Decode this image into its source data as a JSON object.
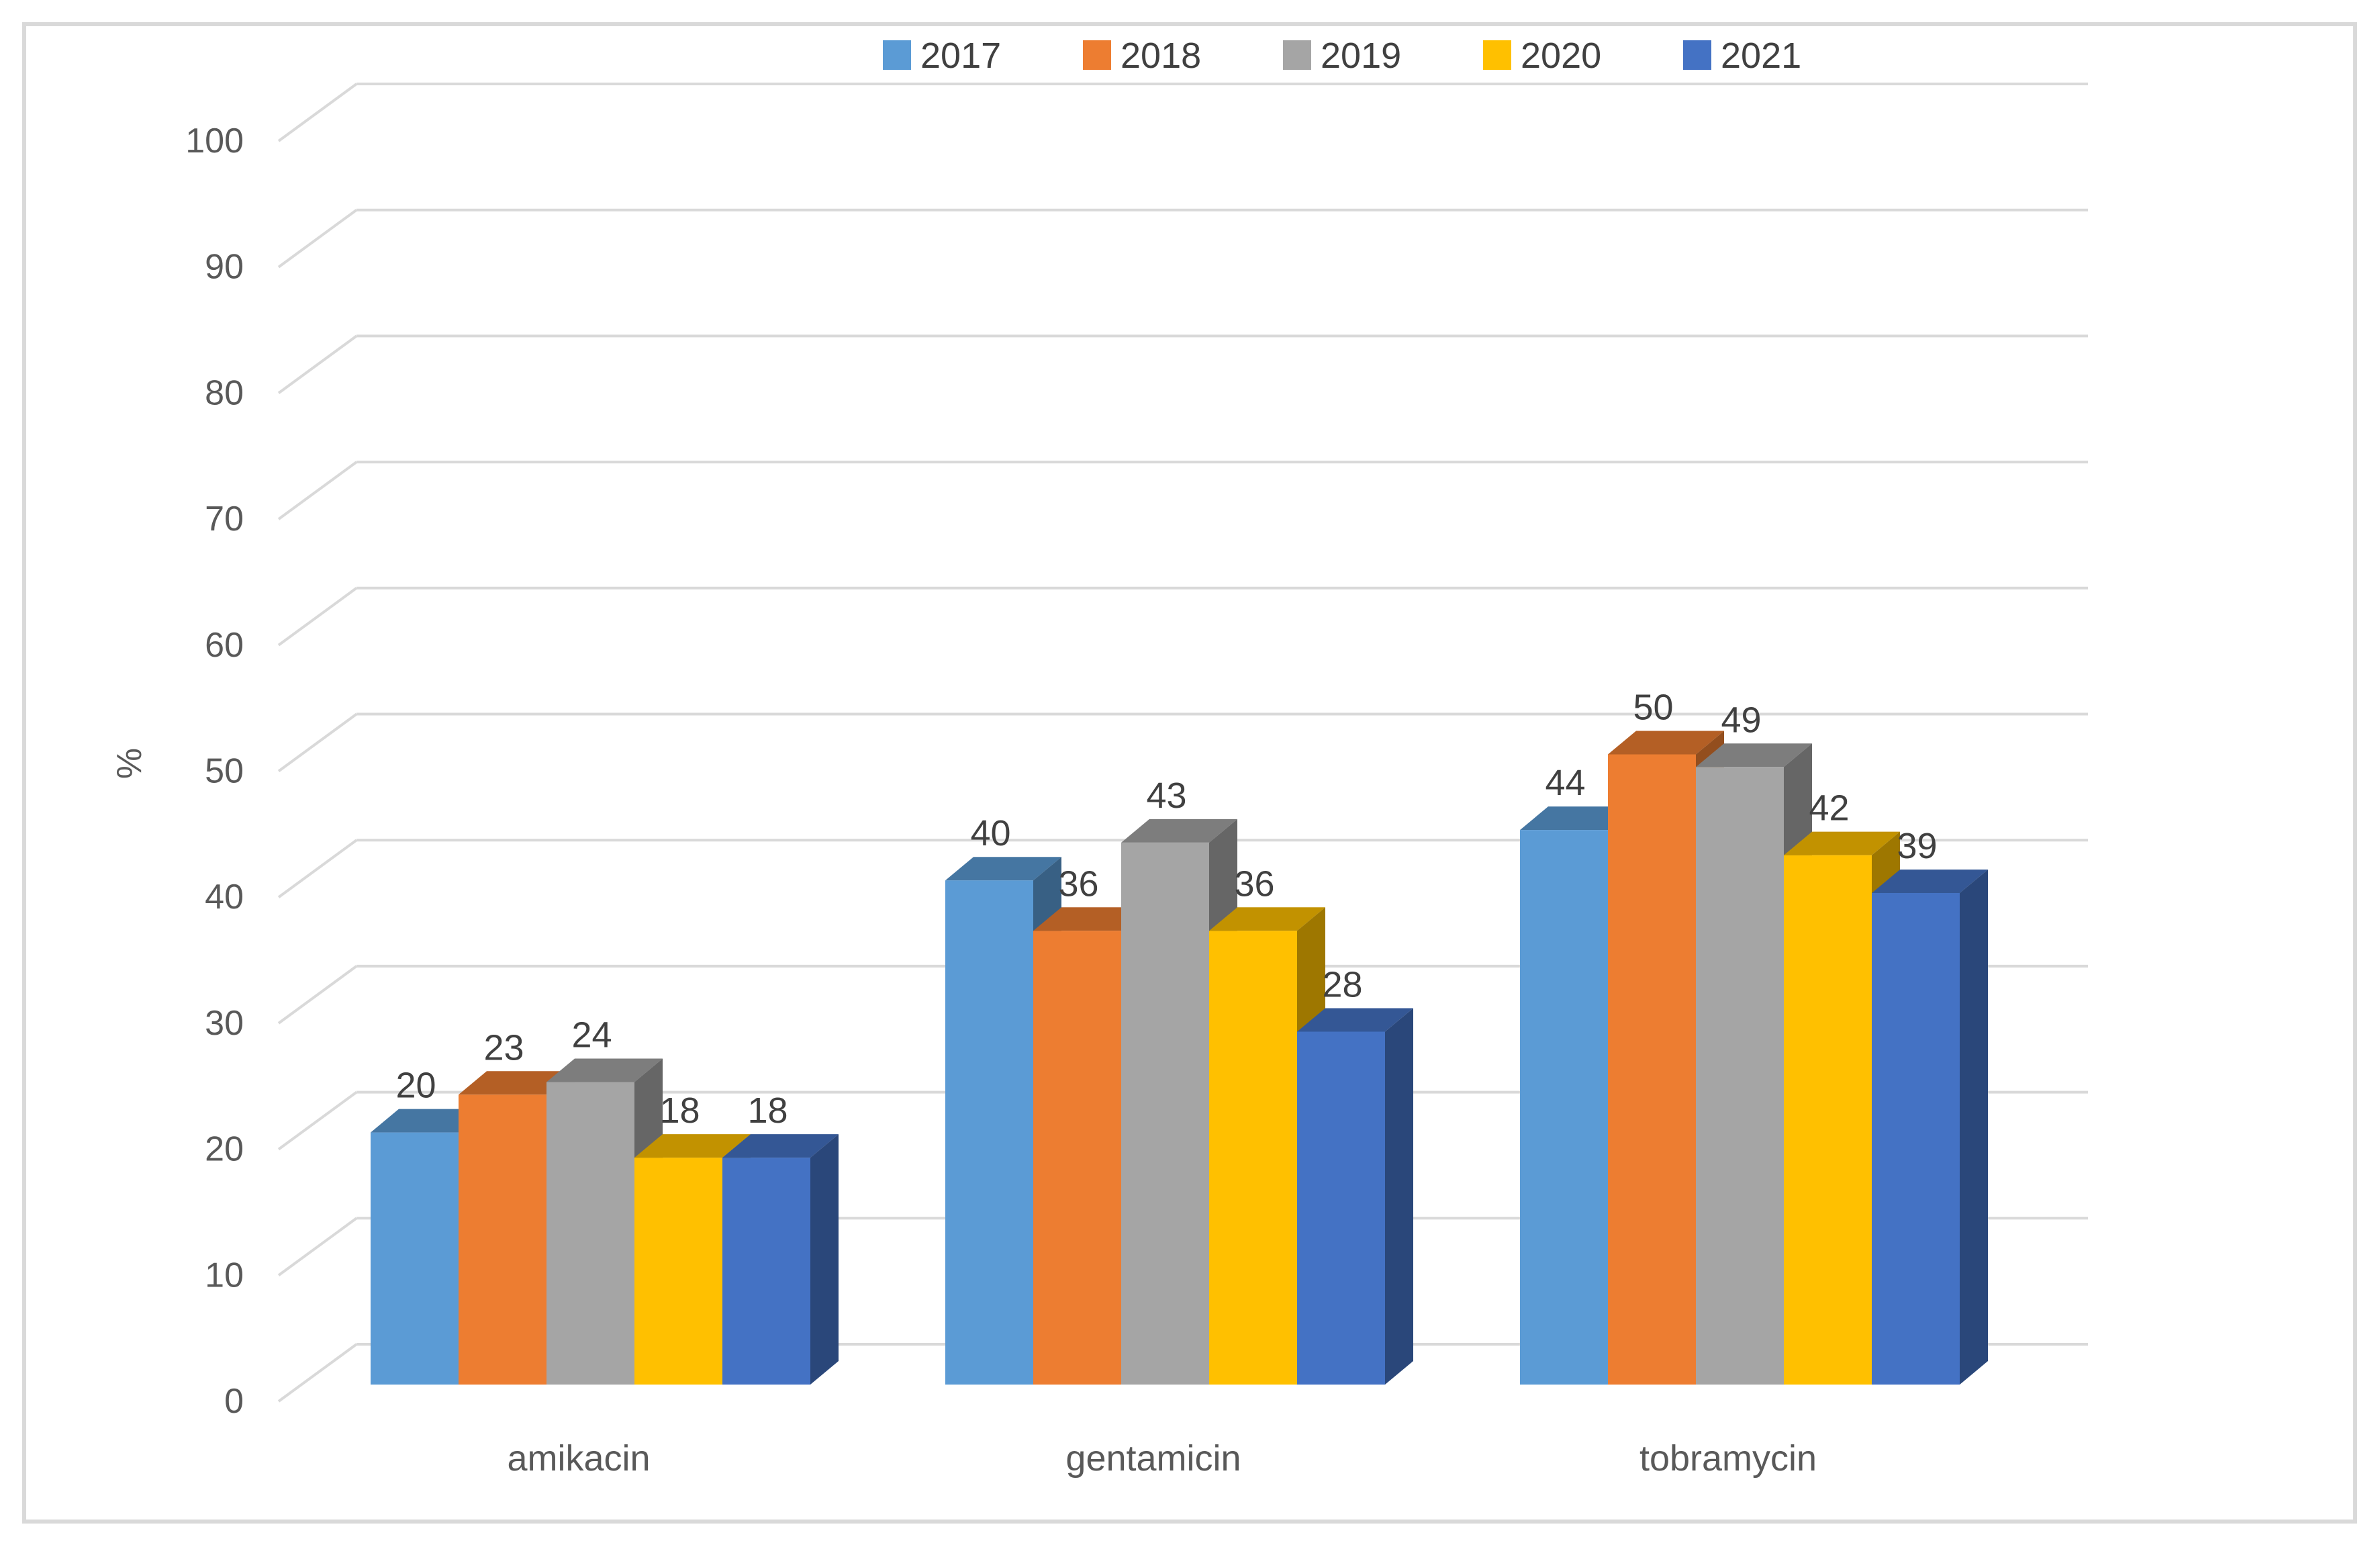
{
  "chart_data": {
    "type": "bar",
    "subtype": "3d-clustered-column",
    "title": "",
    "categories": [
      "amikacin",
      "gentamicin",
      "tobramycin"
    ],
    "series": [
      {
        "name": "2017",
        "color": "#5B9BD5",
        "values": [
          20,
          40,
          44
        ]
      },
      {
        "name": "2018",
        "color": "#ED7D31",
        "values": [
          23,
          36,
          50
        ]
      },
      {
        "name": "2019",
        "color": "#A5A5A5",
        "values": [
          24,
          43,
          49
        ]
      },
      {
        "name": "2020",
        "color": "#FFC000",
        "values": [
          18,
          36,
          42
        ]
      },
      {
        "name": "2021",
        "color": "#4472C4",
        "values": [
          18,
          28,
          39
        ]
      }
    ],
    "ylabel": "%",
    "ylim": [
      0,
      100
    ],
    "ytick_step": 10,
    "yticks": [
      0,
      10,
      20,
      30,
      40,
      50,
      60,
      70,
      80,
      90,
      100
    ],
    "grid": true,
    "legend_position": "top",
    "data_labels": true,
    "colors": {
      "gridline": "#D9D9D9",
      "chart_border": "#D9D9D9",
      "axis_text": "#595959",
      "data_label_text": "#404040",
      "legend_text": "#404040",
      "background": "#FFFFFF"
    }
  }
}
